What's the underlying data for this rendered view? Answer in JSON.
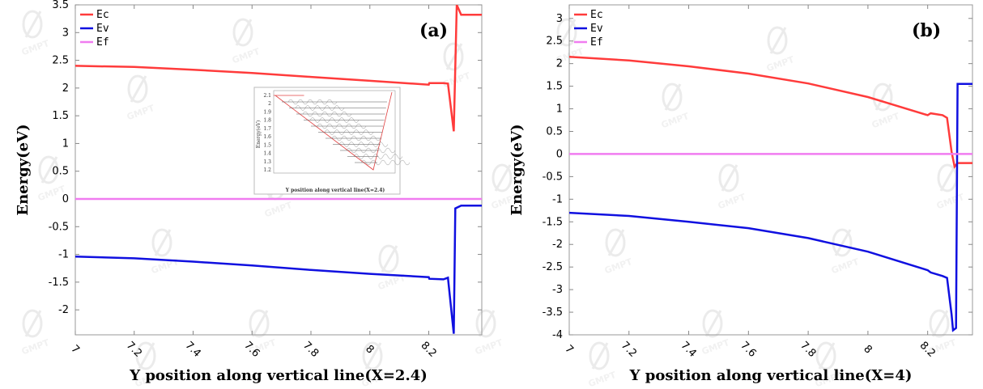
{
  "watermark": {
    "text": "GMPT",
    "color": "#d0d0d0"
  },
  "chart_data": [
    {
      "type": "line",
      "panel_label": "(a)",
      "xlabel": "Y position along vertical line(X=2.4)",
      "ylabel": "Energy(eV)",
      "xlim": [
        7.0,
        8.38
      ],
      "ylim": [
        -2.45,
        3.5
      ],
      "x_ticks": [
        7,
        7.2,
        7.4,
        7.6,
        7.8,
        8,
        8.2
      ],
      "x_tick_labels": [
        "7",
        "7.2",
        "7.4",
        "7.6",
        "7.8",
        "8",
        "8.2"
      ],
      "y_ticks": [
        -2,
        -1.5,
        -1,
        -0.5,
        0,
        0.5,
        1,
        1.5,
        2,
        2.5,
        3,
        3.5
      ],
      "y_tick_labels": [
        "-2",
        "-1.5",
        "-1",
        "-0.5",
        "0",
        "0.5",
        "1",
        "1.5",
        "2",
        "2.5",
        "3",
        "3.5"
      ],
      "legend_position": "top-left",
      "series": [
        {
          "name": "Ec",
          "color": "#ff3b3b",
          "x": [
            7.0,
            7.2,
            7.4,
            7.6,
            7.8,
            8.0,
            8.2,
            8.202,
            8.25,
            8.265,
            8.285,
            8.295,
            8.31,
            8.38
          ],
          "y": [
            2.4,
            2.38,
            2.33,
            2.27,
            2.2,
            2.13,
            2.06,
            2.09,
            2.09,
            2.08,
            1.22,
            3.5,
            3.32,
            3.32
          ]
        },
        {
          "name": "Ev",
          "color": "#1010e0",
          "x": [
            7.0,
            7.2,
            7.4,
            7.6,
            7.8,
            8.0,
            8.2,
            8.202,
            8.25,
            8.265,
            8.285,
            8.29,
            8.31,
            8.38
          ],
          "y": [
            -1.04,
            -1.07,
            -1.13,
            -1.2,
            -1.28,
            -1.35,
            -1.41,
            -1.44,
            -1.45,
            -1.42,
            -2.43,
            -0.17,
            -0.12,
            -0.12
          ]
        },
        {
          "name": "Ef",
          "color": "#f07cf0",
          "x": [
            7.0,
            8.38
          ],
          "y": [
            0.0,
            0.0
          ]
        }
      ],
      "inset": {
        "ylabel": "Energy(eV)",
        "xlabel": "Y position along vertical line(X=2.4)",
        "y_tick_labels": [
          "2.1",
          "2",
          "1.9",
          "1.8",
          "1.7",
          "1.6",
          "1.5",
          "1.4",
          "1.3",
          "1.2"
        ]
      }
    },
    {
      "type": "line",
      "panel_label": "(b)",
      "xlabel": "Y position along vertical line(X=4)",
      "ylabel": "Energy(eV)",
      "xlim": [
        7.0,
        8.35
      ],
      "ylim": [
        -4.0,
        3.3
      ],
      "x_ticks": [
        7,
        7.2,
        7.4,
        7.6,
        7.8,
        8,
        8.2
      ],
      "x_tick_labels": [
        "7",
        "7.2",
        "7.4",
        "7.6",
        "7.8",
        "8",
        "8.2"
      ],
      "y_ticks": [
        -4,
        -3.5,
        -3,
        -2.5,
        -2,
        -1.5,
        -1,
        -0.5,
        0,
        0.5,
        1,
        1.5,
        2,
        2.5,
        3
      ],
      "y_tick_labels": [
        "-4",
        "-3.5",
        "-3",
        "-2.5",
        "-2",
        "-1.5",
        "-1",
        "-0.5",
        "0",
        "0.5",
        "1",
        "1.5",
        "2",
        "2.5",
        "3"
      ],
      "legend_position": "top-left",
      "series": [
        {
          "name": "Ec",
          "color": "#ff3b3b",
          "x": [
            7.0,
            7.2,
            7.4,
            7.6,
            7.8,
            8.0,
            8.2,
            8.21,
            8.25,
            8.265,
            8.28,
            8.29,
            8.3,
            8.35
          ],
          "y": [
            2.15,
            2.07,
            1.94,
            1.78,
            1.56,
            1.26,
            0.86,
            0.9,
            0.86,
            0.8,
            0.05,
            -0.28,
            -0.2,
            -0.2
          ]
        },
        {
          "name": "Ev",
          "color": "#1010e0",
          "x": [
            7.0,
            7.2,
            7.4,
            7.6,
            7.8,
            8.0,
            8.2,
            8.21,
            8.25,
            8.265,
            8.28,
            8.285,
            8.295,
            8.3,
            8.35
          ],
          "y": [
            -1.3,
            -1.37,
            -1.5,
            -1.64,
            -1.86,
            -2.16,
            -2.57,
            -2.62,
            -2.7,
            -2.74,
            -3.55,
            -3.9,
            -3.85,
            1.55,
            1.55
          ]
        },
        {
          "name": "Ef",
          "color": "#f07cf0",
          "x": [
            7.0,
            8.35
          ],
          "y": [
            0.0,
            0.0
          ]
        }
      ]
    }
  ]
}
